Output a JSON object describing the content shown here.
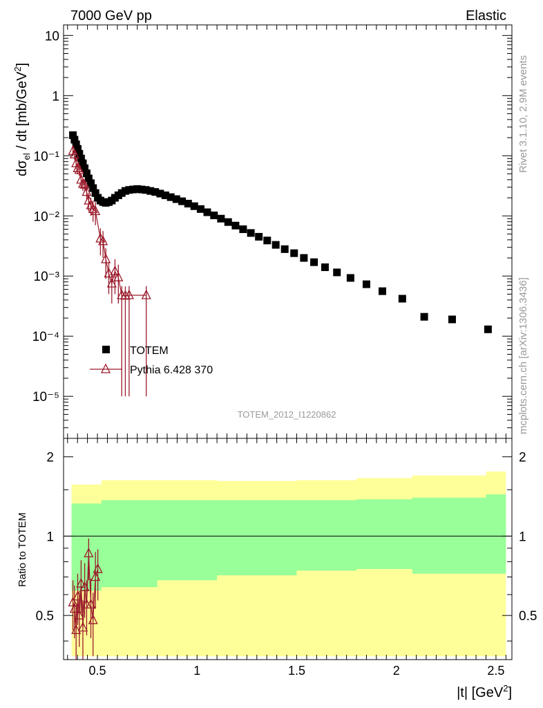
{
  "header": {
    "left": "7000 GeV pp",
    "right": "Elastic"
  },
  "side_labels": {
    "rivet": "Rivet 3.1.10,  2.9M events",
    "mcplots": "mcplots.cern.ch [arXiv:1306.3436]"
  },
  "watermark": "TOTEM_2012_I1220862",
  "colors": {
    "data": "#000000",
    "mc": "#9a1a2a",
    "band_outer": "#ffff99",
    "band_inner": "#99ff99"
  },
  "chart_data": [
    {
      "type": "scatter",
      "yscale": "log",
      "xlim": [
        0.33,
        2.58
      ],
      "ylim": [
        2e-06,
        15
      ],
      "ylabel": "dσel / dt [mb/GeV2]",
      "ytick_labels": [
        "10",
        "1",
        "10⁻¹",
        "10⁻²",
        "10⁻³",
        "10⁻⁴",
        "10⁻⁵"
      ],
      "legend": {
        "placement": "lower-left",
        "entries": [
          "TOTEM",
          "Pythia 6.428 370"
        ]
      },
      "series": [
        {
          "name": "TOTEM",
          "marker": "filled-square",
          "x": [
            0.377,
            0.385,
            0.393,
            0.401,
            0.409,
            0.418,
            0.427,
            0.436,
            0.446,
            0.456,
            0.467,
            0.478,
            0.49,
            0.502,
            0.515,
            0.528,
            0.542,
            0.557,
            0.572,
            0.588,
            0.605,
            0.622,
            0.64,
            0.659,
            0.679,
            0.7,
            0.721,
            0.743,
            0.766,
            0.79,
            0.815,
            0.841,
            0.868,
            0.896,
            0.925,
            0.955,
            0.986,
            1.018,
            1.051,
            1.085,
            1.12,
            1.156,
            1.193,
            1.231,
            1.27,
            1.31,
            1.352,
            1.395,
            1.44,
            1.487,
            1.536,
            1.587,
            1.642,
            1.702,
            1.77,
            1.85,
            1.93,
            2.03,
            2.14,
            2.28,
            2.46
          ],
          "y": [
            0.22,
            0.185,
            0.155,
            0.13,
            0.108,
            0.09,
            0.075,
            0.062,
            0.051,
            0.042,
            0.035,
            0.029,
            0.024,
            0.02,
            0.018,
            0.017,
            0.0165,
            0.017,
            0.018,
            0.02,
            0.022,
            0.024,
            0.026,
            0.027,
            0.0275,
            0.028,
            0.0275,
            0.027,
            0.026,
            0.025,
            0.0235,
            0.022,
            0.0205,
            0.019,
            0.0175,
            0.016,
            0.0145,
            0.013,
            0.0115,
            0.0102,
            0.009,
            0.0079,
            0.0069,
            0.006,
            0.0052,
            0.0045,
            0.0039,
            0.0033,
            0.0028,
            0.0024,
            0.002,
            0.0017,
            0.0014,
            0.00115,
            0.00093,
            0.00073,
            0.00056,
            0.00042,
            0.00021,
            0.00019,
            0.00013
          ],
          "y_note": "points plotted as read"
        },
        {
          "name": "Pythia 6.428 370",
          "marker": "open-triangle",
          "x": [
            0.377,
            0.385,
            0.393,
            0.401,
            0.409,
            0.418,
            0.427,
            0.436,
            0.446,
            0.456,
            0.467,
            0.478,
            0.49,
            0.515,
            0.528,
            0.542,
            0.557,
            0.572,
            0.588,
            0.605,
            0.622,
            0.64,
            0.659,
            0.745
          ],
          "y": [
            0.12,
            0.105,
            0.075,
            0.062,
            0.058,
            0.04,
            0.034,
            0.033,
            0.025,
            0.018,
            0.015,
            0.013,
            0.012,
            0.0042,
            0.0038,
            0.0019,
            0.0011,
            0.00075,
            0.0012,
            0.00095,
            0.00048,
            0.00047,
            0.00048,
            0.00048
          ],
          "y_err_low": [
            0.02,
            0.02,
            0.015,
            0.013,
            0.012,
            0.01,
            0.008,
            0.008,
            0.007,
            0.006,
            0.005,
            0.005,
            0.005,
            0.002,
            0.0018,
            0.001,
            0.0006,
            0.0004,
            0.0007,
            0.0006,
            0.00047,
            0.00046,
            0.00047,
            0.00047
          ],
          "y_err_high": [
            0.02,
            0.02,
            0.015,
            0.013,
            0.012,
            0.01,
            0.008,
            0.008,
            0.007,
            0.006,
            0.005,
            0.005,
            0.005,
            0.002,
            0.0018,
            0.001,
            0.0006,
            0.0004,
            0.0007,
            0.0006,
            0.0002,
            0.0002,
            0.0002,
            0.0002
          ]
        }
      ]
    },
    {
      "type": "scatter",
      "yscale": "log",
      "xlim": [
        0.33,
        2.58
      ],
      "ylim": [
        0.34,
        2.35
      ],
      "xlabel": "|t| [GeV2]",
      "ylabel": "Ratio to TOTEM",
      "xtick_labels": [
        "0.5",
        "1",
        "1.5",
        "2",
        "2.5"
      ],
      "ytick_labels": [
        "2",
        "1",
        "0.5"
      ],
      "reference_line": 1,
      "bands": {
        "x_edges": [
          0.37,
          0.52,
          0.8,
          1.1,
          1.5,
          1.8,
          2.08,
          2.45,
          2.55
        ],
        "outer_low": [
          0.35,
          0.35,
          0.35,
          0.35,
          0.35,
          0.35,
          0.35,
          0.35,
          0.35
        ],
        "outer_high": [
          1.57,
          1.63,
          1.63,
          1.62,
          1.63,
          1.66,
          1.7,
          1.76,
          1.76
        ],
        "inner_low": [
          0.62,
          0.64,
          0.68,
          0.71,
          0.74,
          0.75,
          0.72,
          0.72,
          0.72
        ],
        "inner_high": [
          1.33,
          1.37,
          1.37,
          1.37,
          1.37,
          1.38,
          1.4,
          1.44,
          1.44
        ]
      },
      "series": [
        {
          "name": "Pythia 6.428 370",
          "marker": "open-triangle",
          "x": [
            0.377,
            0.385,
            0.393,
            0.401,
            0.409,
            0.418,
            0.427,
            0.436,
            0.446,
            0.456,
            0.467,
            0.478,
            0.49,
            0.502
          ],
          "y": [
            0.56,
            0.53,
            0.44,
            0.59,
            0.5,
            0.66,
            0.45,
            0.64,
            0.55,
            0.86,
            0.55,
            0.48,
            0.7,
            0.75
          ],
          "y_err_low": [
            0.12,
            0.12,
            0.1,
            0.13,
            0.12,
            0.15,
            0.12,
            0.15,
            0.13,
            0.18,
            0.14,
            0.13,
            0.17,
            0.18
          ],
          "y_err_high": [
            0.12,
            0.12,
            0.1,
            0.13,
            0.12,
            0.15,
            0.12,
            0.15,
            0.13,
            0.12,
            0.14,
            0.13,
            0.17,
            0.14
          ]
        }
      ]
    }
  ]
}
